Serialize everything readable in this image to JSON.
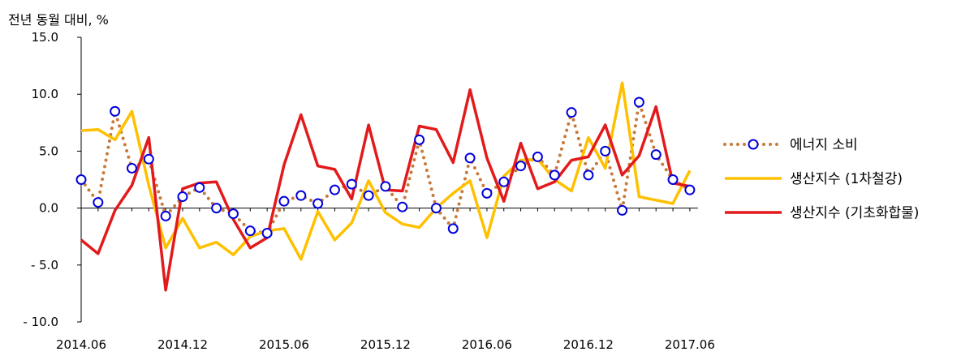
{
  "chart_data": {
    "type": "line",
    "ylabel": "전년 동월 대비, %",
    "ylim": [
      -10,
      15
    ],
    "yticks": [
      {
        "value": 15,
        "label": "15.0"
      },
      {
        "value": 10,
        "label": "10.0"
      },
      {
        "value": 5,
        "label": "5.0"
      },
      {
        "value": 0,
        "label": "0.0"
      },
      {
        "value": -5,
        "label": "- 5.0"
      },
      {
        "value": -10,
        "label": "- 10.0"
      }
    ],
    "xticks": [
      {
        "index": 0,
        "label": "2014.06"
      },
      {
        "index": 6,
        "label": "2014.12"
      },
      {
        "index": 12,
        "label": "2015.06"
      },
      {
        "index": 18,
        "label": "2015.12"
      },
      {
        "index": 24,
        "label": "2016.06"
      },
      {
        "index": 30,
        "label": "2016.12"
      },
      {
        "index": 36,
        "label": "2017.06"
      }
    ],
    "legend_position": "right",
    "grid": false,
    "series": [
      {
        "name": "에너지 소비",
        "style": "dotted-markers",
        "color": "#c87a3a",
        "marker_color": "#0000dd",
        "values": [
          2.5,
          0.5,
          8.5,
          3.5,
          4.3,
          -0.7,
          1.0,
          1.8,
          0.0,
          -0.5,
          -2.0,
          -2.2,
          0.6,
          1.1,
          0.4,
          1.6,
          2.1,
          1.1,
          1.9,
          0.1,
          6.0,
          0.0,
          -1.8,
          4.4,
          1.3,
          2.3,
          3.7,
          4.5,
          2.9,
          8.4,
          2.9,
          5.0,
          -0.2,
          9.3,
          4.7,
          2.5,
          1.6
        ]
      },
      {
        "name": "생산지수 (1차철강)",
        "style": "line",
        "color": "#ffc000",
        "values": [
          6.8,
          6.9,
          6.0,
          8.5,
          2.0,
          -3.5,
          -0.9,
          -3.5,
          -3.0,
          -4.1,
          -2.5,
          -2.0,
          -1.8,
          -4.5,
          -0.3,
          -2.8,
          -1.3,
          2.4,
          -0.4,
          -1.4,
          -1.7,
          0.0,
          1.3,
          2.4,
          -2.6,
          2.8,
          4.2,
          4.3,
          2.5,
          1.5,
          6.2,
          3.5,
          11.0,
          1.0,
          0.7,
          0.4,
          3.3
        ]
      },
      {
        "name": "생산지수 (기초화합물)",
        "style": "line",
        "color": "#e31a1c",
        "values": [
          -2.8,
          -4.0,
          -0.2,
          2.0,
          6.2,
          -7.2,
          1.7,
          2.2,
          2.3,
          -1.0,
          -3.5,
          -2.6,
          3.8,
          8.2,
          3.7,
          3.4,
          0.8,
          7.3,
          1.6,
          1.5,
          7.2,
          6.9,
          4.0,
          10.4,
          4.4,
          0.6,
          5.7,
          1.7,
          2.3,
          4.2,
          4.5,
          7.3,
          2.9,
          4.6,
          8.9,
          2.2,
          1.9
        ]
      }
    ]
  }
}
